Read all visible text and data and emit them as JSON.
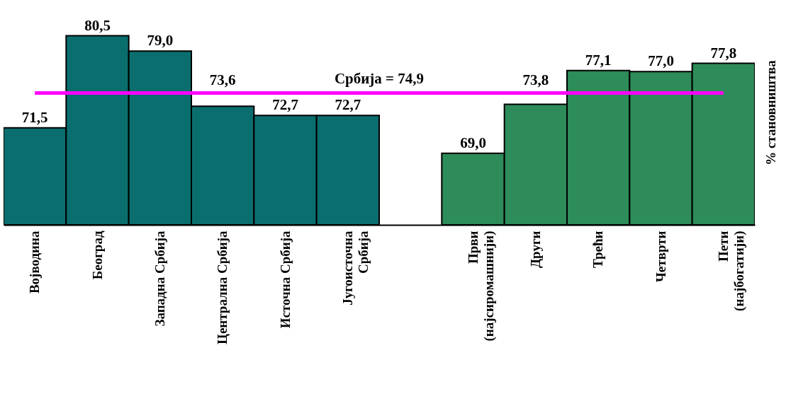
{
  "chart_data": {
    "type": "bar",
    "ylabel": "% становништва",
    "categories": [
      "Војводина",
      "Београд",
      "Западна Србија",
      "Централна Србија",
      "Источна Србија",
      "Југоисточна\nСрбија",
      null,
      "Први\n(најсиромашнији)",
      "Други",
      "Трећи",
      "Четврти",
      "Пети\n(најбогатији)"
    ],
    "values": [
      71.5,
      80.5,
      79.0,
      73.6,
      72.7,
      72.7,
      null,
      69.0,
      73.8,
      77.1,
      77.0,
      77.8
    ],
    "value_labels": [
      "71,5",
      "80,5",
      "79,0",
      "73,6",
      "72,7",
      "72,7",
      null,
      "69,0",
      "73,8",
      "77,1",
      "77,0",
      "77,8"
    ],
    "colors": [
      "#0b6e6e",
      "#0b6e6e",
      "#0b6e6e",
      "#0b6e6e",
      "#0b6e6e",
      "#0b6e6e",
      null,
      "#2e8b5a",
      "#2e8b5a",
      "#2e8b5a",
      "#2e8b5a",
      "#2e8b5a"
    ],
    "ylim": [
      62,
      84
    ],
    "ref_lines": [
      {
        "axis": "y",
        "value": 74.9,
        "label": "Србија = 74,9",
        "color": "#ff00ff"
      }
    ],
    "grid": false
  }
}
